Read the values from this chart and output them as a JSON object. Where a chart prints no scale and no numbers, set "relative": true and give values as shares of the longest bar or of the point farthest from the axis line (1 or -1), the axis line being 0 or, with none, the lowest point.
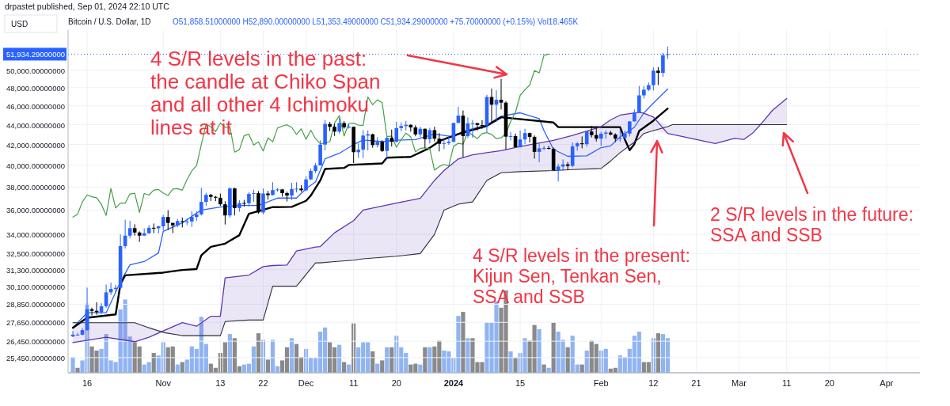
{
  "chart_data": [
    {
      "type": "candlestick",
      "title": "Bitcoin / U.S. Dollar, 1D",
      "subtitle": "O51,858.51000000 H52,890.00000000 L51,353.49000000 C51,934.29000000 +75.70000000 (+0.15%) Vol18.465K",
      "annotations": [
        "4 S/R levels in the past:\nthe candle at Chiko Span\nand all other 4 Ichimoku\nlines at it",
        "4 S/R levels in the present:\nKijun Sen, Tenkan Sen,\nSSA and SSB",
        "2 S/R levels in the future:\nSSA and SSB",
        "USD",
        "drpastet published, Sep 01, 2024 22:10 UTC"
      ],
      "log": "y",
      "grid": true,
      "xlim": [
        "2023-10-12",
        "2024-04-08"
      ],
      "xticks": [
        {
          "value": "2023-10-16",
          "label": "16"
        },
        {
          "value": "2023-11-01",
          "label": "Nov"
        },
        {
          "value": "2023-11-13",
          "label": "13"
        },
        {
          "value": "2023-11-22",
          "label": "22"
        },
        {
          "value": "2023-12-01",
          "label": "Dec"
        },
        {
          "value": "2023-12-11",
          "label": "11"
        },
        {
          "value": "2023-12-20",
          "label": "20"
        },
        {
          "value": "2024-01-01",
          "label": "2024"
        },
        {
          "value": "2024-01-15",
          "label": "15"
        },
        {
          "value": "2024-02-01",
          "label": "Feb"
        },
        {
          "value": "2024-02-12",
          "label": "12"
        },
        {
          "value": "2024-02-21",
          "label": "21"
        },
        {
          "value": "2024-03-01",
          "label": "Mar"
        },
        {
          "value": "2024-03-11",
          "label": "11"
        },
        {
          "value": "2024-03-20",
          "label": "20"
        },
        {
          "value": "2024-04-01",
          "label": "Apr"
        }
      ],
      "ylim": [
        24560,
        54960
      ],
      "yticks": [
        {
          "value": 25450,
          "label": "25,450.00000000"
        },
        {
          "value": 26450,
          "label": "26,450.00000000"
        },
        {
          "value": 27650,
          "label": "27,650.00000000"
        },
        {
          "value": 28850,
          "label": "28,850.00000000"
        },
        {
          "value": 30100,
          "label": "30,100.00000000"
        },
        {
          "value": 31300,
          "label": "31,300.00000000"
        },
        {
          "value": 32500,
          "label": "32,500.00000000"
        },
        {
          "value": 34000,
          "label": "34,000.00000000"
        },
        {
          "value": 36000,
          "label": "36,000.00000000"
        },
        {
          "value": 38000,
          "label": "38,000.00000000"
        },
        {
          "value": 40000,
          "label": "40,000.00000000"
        },
        {
          "value": 42000,
          "label": "42,000.00000000"
        },
        {
          "value": 44000,
          "label": "44,000.00000000"
        },
        {
          "value": 46000,
          "label": "46,000.00000000"
        },
        {
          "value": 48000,
          "label": "48,000.00000000"
        },
        {
          "value": 50000,
          "label": "50,000.00000000"
        }
      ],
      "ref_lines": [
        {
          "axis": "y",
          "value": 51934.29,
          "label": "51,934.29000000",
          "color": "#2962ff",
          "line_style": "dotted"
        }
      ],
      "x": [
        "2023-10-13",
        "2023-10-14",
        "2023-10-15",
        "2023-10-16",
        "2023-10-17",
        "2023-10-18",
        "2023-10-19",
        "2023-10-20",
        "2023-10-21",
        "2023-10-22",
        "2023-10-23",
        "2023-10-24",
        "2023-10-25",
        "2023-10-26",
        "2023-10-27",
        "2023-10-28",
        "2023-10-29",
        "2023-10-30",
        "2023-10-31",
        "2023-11-01",
        "2023-11-02",
        "2023-11-03",
        "2023-11-04",
        "2023-11-05",
        "2023-11-06",
        "2023-11-07",
        "2023-11-08",
        "2023-11-09",
        "2023-11-10",
        "2023-11-11",
        "2023-11-12",
        "2023-11-13",
        "2023-11-14",
        "2023-11-15",
        "2023-11-16",
        "2023-11-17",
        "2023-11-18",
        "2023-11-19",
        "2023-11-20",
        "2023-11-21",
        "2023-11-22",
        "2023-11-23",
        "2023-11-24",
        "2023-11-25",
        "2023-11-26",
        "2023-11-27",
        "2023-11-28",
        "2023-11-29",
        "2023-11-30",
        "2023-12-01",
        "2023-12-02",
        "2023-12-03",
        "2023-12-04",
        "2023-12-05",
        "2023-12-06",
        "2023-12-07",
        "2023-12-08",
        "2023-12-09",
        "2023-12-10",
        "2023-12-11",
        "2023-12-12",
        "2023-12-13",
        "2023-12-14",
        "2023-12-15",
        "2023-12-16",
        "2023-12-17",
        "2023-12-18",
        "2023-12-19",
        "2023-12-20",
        "2023-12-21",
        "2023-12-22",
        "2023-12-23",
        "2023-12-24",
        "2023-12-25",
        "2023-12-26",
        "2023-12-27",
        "2023-12-28",
        "2023-12-29",
        "2023-12-30",
        "2023-12-31",
        "2024-01-01",
        "2024-01-02",
        "2024-01-03",
        "2024-01-04",
        "2024-01-05",
        "2024-01-06",
        "2024-01-07",
        "2024-01-08",
        "2024-01-09",
        "2024-01-10",
        "2024-01-11",
        "2024-01-12",
        "2024-01-13",
        "2024-01-14",
        "2024-01-15",
        "2024-01-16",
        "2024-01-17",
        "2024-01-18",
        "2024-01-19",
        "2024-01-20",
        "2024-01-21",
        "2024-01-22",
        "2024-01-23",
        "2024-01-24",
        "2024-01-25",
        "2024-01-26",
        "2024-01-27",
        "2024-01-28",
        "2024-01-29",
        "2024-01-30",
        "2024-01-31",
        "2024-02-01",
        "2024-02-02",
        "2024-02-03",
        "2024-02-04",
        "2024-02-05",
        "2024-02-06",
        "2024-02-07",
        "2024-02-08",
        "2024-02-09",
        "2024-02-10",
        "2024-02-11",
        "2024-02-12",
        "2024-02-13",
        "2024-02-14",
        "2024-02-15"
      ],
      "ohlc": [
        [
          26750,
          27100,
          26700,
          26860
        ],
        [
          26860,
          26980,
          26820,
          26860
        ],
        [
          26860,
          27280,
          26810,
          27150
        ],
        [
          27150,
          30000,
          27110,
          28510
        ],
        [
          28510,
          28620,
          28100,
          28410
        ],
        [
          28410,
          28990,
          28150,
          28320
        ],
        [
          28320,
          28920,
          28180,
          28720
        ],
        [
          28720,
          30220,
          28600,
          29670
        ],
        [
          29670,
          30350,
          29480,
          29910
        ],
        [
          29910,
          30200,
          29680,
          29990
        ],
        [
          29990,
          34000,
          29900,
          33080
        ],
        [
          33080,
          35200,
          32880,
          33900
        ],
        [
          33900,
          35100,
          33700,
          34500
        ],
        [
          34500,
          34820,
          33900,
          34150
        ],
        [
          34150,
          34240,
          33400,
          33900
        ],
        [
          33900,
          34480,
          33880,
          34090
        ],
        [
          34090,
          34750,
          34050,
          34530
        ],
        [
          34530,
          34880,
          34100,
          34490
        ],
        [
          34490,
          34700,
          34080,
          34650
        ],
        [
          34650,
          35600,
          34330,
          35420
        ],
        [
          35420,
          35980,
          34350,
          34930
        ],
        [
          34930,
          34940,
          34100,
          34730
        ],
        [
          34730,
          35260,
          34580,
          35080
        ],
        [
          35080,
          35380,
          34560,
          35040
        ],
        [
          35040,
          35280,
          34750,
          35050
        ],
        [
          35050,
          35900,
          34600,
          35420
        ],
        [
          35420,
          35900,
          35100,
          35640
        ],
        [
          35640,
          37930,
          35540,
          36700
        ],
        [
          36700,
          37500,
          36350,
          37310
        ],
        [
          37310,
          37400,
          36780,
          37140
        ],
        [
          37140,
          37220,
          36760,
          37060
        ],
        [
          37060,
          37420,
          36350,
          36490
        ],
        [
          36490,
          36750,
          34800,
          35550
        ],
        [
          35550,
          37980,
          35370,
          37880
        ],
        [
          37880,
          37930,
          35550,
          36170
        ],
        [
          36170,
          36840,
          35860,
          36600
        ],
        [
          36600,
          36870,
          36300,
          36590
        ],
        [
          36590,
          37540,
          36300,
          37390
        ],
        [
          37390,
          37760,
          36700,
          37460
        ],
        [
          37460,
          37650,
          35700,
          35800
        ],
        [
          35800,
          37880,
          35640,
          37430
        ],
        [
          37430,
          37660,
          36900,
          37290
        ],
        [
          37290,
          38430,
          37260,
          37730
        ],
        [
          37730,
          37900,
          37600,
          37790
        ],
        [
          37790,
          37830,
          37150,
          37460
        ],
        [
          37460,
          37600,
          36730,
          37250
        ],
        [
          37250,
          38380,
          36870,
          37830
        ],
        [
          37830,
          38430,
          37520,
          37860
        ],
        [
          37860,
          38180,
          37580,
          37720
        ],
        [
          37720,
          38980,
          37620,
          38690
        ],
        [
          38690,
          39700,
          38630,
          39470
        ],
        [
          39470,
          40200,
          39280,
          39980
        ],
        [
          39980,
          42400,
          39980,
          41990
        ],
        [
          41990,
          44500,
          41420,
          44080
        ],
        [
          44080,
          44300,
          43350,
          43780
        ],
        [
          43780,
          44080,
          42850,
          43290
        ],
        [
          43290,
          44700,
          43090,
          44170
        ],
        [
          44170,
          44370,
          43590,
          43730
        ],
        [
          43730,
          44040,
          43590,
          43790
        ],
        [
          43790,
          43790,
          40200,
          41250
        ],
        [
          41250,
          42100,
          40700,
          41490
        ],
        [
          41490,
          43430,
          40680,
          42890
        ],
        [
          42890,
          43420,
          41420,
          43020
        ],
        [
          43020,
          43090,
          41680,
          41940
        ],
        [
          41940,
          42720,
          41700,
          42260
        ],
        [
          42260,
          42430,
          41260,
          41370
        ],
        [
          41370,
          42750,
          40560,
          42660
        ],
        [
          42660,
          43500,
          41800,
          42270
        ],
        [
          42270,
          44300,
          42180,
          43650
        ],
        [
          43650,
          44240,
          43320,
          43860
        ],
        [
          43860,
          44400,
          43420,
          43990
        ],
        [
          43990,
          44020,
          43280,
          43720
        ],
        [
          43720,
          43950,
          42820,
          43010
        ],
        [
          43010,
          43800,
          42740,
          43580
        ],
        [
          43580,
          43600,
          41670,
          42520
        ],
        [
          42520,
          43680,
          42100,
          43440
        ],
        [
          43440,
          43800,
          42310,
          42580
        ],
        [
          42580,
          43130,
          41320,
          42070
        ],
        [
          42070,
          42600,
          41540,
          42140
        ],
        [
          42140,
          42880,
          41970,
          42280
        ],
        [
          42280,
          44190,
          42200,
          44180
        ],
        [
          44180,
          45900,
          44180,
          44950
        ],
        [
          44950,
          45500,
          40750,
          42840
        ],
        [
          42840,
          44760,
          42640,
          44150
        ],
        [
          44150,
          44490,
          42660,
          44160
        ],
        [
          44160,
          44200,
          43400,
          43960
        ],
        [
          43960,
          44480,
          43580,
          43930
        ],
        [
          43930,
          47200,
          43200,
          46960
        ],
        [
          46960,
          47900,
          44300,
          46120
        ],
        [
          46120,
          47700,
          44300,
          46650
        ],
        [
          46650,
          49000,
          45600,
          46340
        ],
        [
          46340,
          46500,
          41500,
          42780
        ],
        [
          42780,
          43250,
          42400,
          42840
        ],
        [
          42840,
          43080,
          41720,
          41730
        ],
        [
          41730,
          43400,
          41720,
          42500
        ],
        [
          42500,
          43580,
          42040,
          43140
        ],
        [
          43140,
          43190,
          42200,
          42760
        ],
        [
          42760,
          42900,
          40630,
          41280
        ],
        [
          41280,
          42200,
          40280,
          41620
        ],
        [
          41620,
          41870,
          41440,
          41660
        ],
        [
          41660,
          41880,
          41500,
          41580
        ],
        [
          41580,
          41690,
          39450,
          39540
        ],
        [
          39540,
          40130,
          38500,
          39880
        ],
        [
          39880,
          40560,
          39500,
          40080
        ],
        [
          40080,
          40300,
          39560,
          39940
        ],
        [
          39940,
          42200,
          39830,
          41820
        ],
        [
          41820,
          42230,
          41400,
          42120
        ],
        [
          42120,
          42800,
          41620,
          42030
        ],
        [
          42030,
          43300,
          41800,
          43300
        ],
        [
          43300,
          43880,
          42700,
          42940
        ],
        [
          42940,
          43740,
          42300,
          42580
        ],
        [
          42580,
          43280,
          41880,
          43080
        ],
        [
          43080,
          43420,
          42580,
          43190
        ],
        [
          43190,
          43380,
          42900,
          43000
        ],
        [
          43000,
          43120,
          42250,
          42580
        ],
        [
          42580,
          43500,
          42260,
          42660
        ],
        [
          42660,
          43400,
          42580,
          43090
        ],
        [
          43090,
          44370,
          42800,
          44340
        ],
        [
          44340,
          45600,
          44330,
          45290
        ],
        [
          45290,
          48200,
          45240,
          47140
        ],
        [
          47140,
          48170,
          46800,
          47770
        ],
        [
          47770,
          48580,
          47620,
          48290
        ],
        [
          48290,
          50330,
          47700,
          49960
        ],
        [
          49960,
          50380,
          48300,
          49700
        ],
        [
          49700,
          52100,
          49250,
          51800
        ],
        [
          51858.51,
          52890,
          51353.49,
          51934.29
        ]
      ],
      "series": [
        {
          "type": "line",
          "color": "#2962ff",
          "x": [
            "2023-10-13",
            "2023-10-16",
            "2023-10-20",
            "2023-10-23",
            "2023-10-25",
            "2023-10-28",
            "2023-10-31",
            "2023-11-01",
            "2023-11-05",
            "2023-11-09",
            "2023-11-13",
            "2023-11-17",
            "2023-11-21",
            "2023-11-25",
            "2023-11-29",
            "2023-12-01",
            "2023-12-03",
            "2023-12-05",
            "2023-12-08",
            "2023-12-11",
            "2023-12-13",
            "2023-12-17",
            "2023-12-20",
            "2023-12-24",
            "2023-12-28",
            "2024-01-01",
            "2024-01-03",
            "2024-01-08",
            "2024-01-11",
            "2024-01-15",
            "2024-01-19",
            "2024-01-20",
            "2024-01-22",
            "2024-01-25",
            "2024-01-29",
            "2024-02-01",
            "2024-02-03",
            "2024-02-05",
            "2024-02-08",
            "2024-02-10",
            "2024-02-12",
            "2024-02-15"
          ],
          "values": [
            27300,
            28280,
            28280,
            30400,
            31650,
            31900,
            32550,
            34240,
            34930,
            36010,
            36250,
            36390,
            36390,
            37030,
            37030,
            37850,
            38470,
            40610,
            41140,
            41990,
            42450,
            42280,
            42430,
            42480,
            43040,
            42760,
            43330,
            43980,
            44880,
            45250,
            44640,
            43390,
            41520,
            40850,
            40900,
            41690,
            41860,
            42750,
            43740,
            45230,
            46290,
            47850
          ]
        },
        {
          "type": "line",
          "color": "#000000",
          "x": [
            "2023-10-13",
            "2023-10-16",
            "2023-10-22",
            "2023-10-23",
            "2023-10-24",
            "2023-11-01",
            "2023-11-05",
            "2023-11-08",
            "2023-11-09",
            "2023-11-11",
            "2023-11-14",
            "2023-11-17",
            "2023-11-19",
            "2023-11-24",
            "2023-11-28",
            "2023-12-01",
            "2023-12-02",
            "2023-12-04",
            "2023-12-05",
            "2023-12-09",
            "2023-12-10",
            "2023-12-17",
            "2023-12-18",
            "2023-12-23",
            "2023-12-27",
            "2023-12-28",
            "2023-12-29",
            "2024-01-02",
            "2024-01-08",
            "2024-01-11",
            "2024-01-22",
            "2024-01-23",
            "2024-02-05",
            "2024-02-06",
            "2024-02-07",
            "2024-02-08",
            "2024-02-09",
            "2024-02-12",
            "2024-02-15"
          ],
          "values": [
            27300,
            27950,
            28170,
            30250,
            30880,
            31080,
            31270,
            31340,
            32370,
            33020,
            33270,
            33940,
            35690,
            36250,
            36270,
            36790,
            37250,
            38600,
            39650,
            39750,
            40030,
            40170,
            40720,
            40790,
            41670,
            41990,
            42340,
            43050,
            43880,
            44780,
            44230,
            43750,
            43750,
            42500,
            41440,
            42050,
            43350,
            44420,
            45700
          ]
        },
        {
          "type": "line",
          "color": "#43a047",
          "x": [
            "2023-10-13",
            "2023-10-14",
            "2023-10-15",
            "2023-10-16",
            "2023-10-17",
            "2023-10-18",
            "2023-10-19",
            "2023-10-20",
            "2023-10-21",
            "2023-10-22",
            "2023-10-23",
            "2023-10-24",
            "2023-10-25",
            "2023-10-26",
            "2023-10-27",
            "2023-10-28",
            "2023-10-29",
            "2023-10-30",
            "2023-10-31",
            "2023-11-01",
            "2023-11-02",
            "2023-11-03",
            "2023-11-04",
            "2023-11-05",
            "2023-11-06",
            "2023-11-07",
            "2023-11-08",
            "2023-11-09",
            "2023-11-10",
            "2023-11-11",
            "2023-11-12",
            "2023-11-13",
            "2023-11-14",
            "2023-11-15",
            "2023-11-16",
            "2023-11-17",
            "2023-11-18",
            "2023-11-19",
            "2023-11-20",
            "2023-11-21",
            "2023-11-22",
            "2023-11-23",
            "2023-11-24",
            "2023-11-25",
            "2023-11-26",
            "2023-11-27",
            "2023-11-28",
            "2023-11-29",
            "2023-11-30",
            "2023-12-01",
            "2023-12-02",
            "2023-12-03",
            "2023-12-04",
            "2023-12-05",
            "2023-12-06",
            "2023-12-07",
            "2023-12-08",
            "2023-12-09",
            "2023-12-10",
            "2023-12-11",
            "2023-12-12",
            "2023-12-13",
            "2023-12-14",
            "2023-12-15",
            "2023-12-16",
            "2023-12-17",
            "2023-12-18",
            "2023-12-19",
            "2023-12-20",
            "2023-12-21",
            "2023-12-22",
            "2023-12-23",
            "2023-12-24",
            "2023-12-25",
            "2023-12-26",
            "2023-12-27",
            "2023-12-28",
            "2023-12-29",
            "2023-12-30",
            "2023-12-31",
            "2024-01-01",
            "2024-01-02",
            "2024-01-03",
            "2024-01-04",
            "2024-01-05",
            "2024-01-06",
            "2024-01-07",
            "2024-01-08",
            "2024-01-09",
            "2024-01-10",
            "2024-01-11",
            "2024-01-12",
            "2024-01-13",
            "2024-01-14",
            "2024-01-15",
            "2024-01-16",
            "2024-01-17",
            "2024-01-18",
            "2024-01-19",
            "2024-01-20",
            "2024-01-21"
          ],
          "values": [
            35420,
            35640,
            36700,
            37310,
            37140,
            37060,
            36490,
            35550,
            37880,
            36170,
            36600,
            36590,
            37390,
            37460,
            35800,
            37430,
            37290,
            37730,
            37790,
            37460,
            37250,
            37830,
            37860,
            37720,
            38690,
            39470,
            39980,
            41990,
            44080,
            43780,
            43290,
            44170,
            43730,
            43790,
            41250,
            41490,
            42890,
            43020,
            41940,
            42260,
            41370,
            42660,
            42270,
            43650,
            43860,
            43990,
            43720,
            43010,
            43580,
            42520,
            43440,
            42580,
            42070,
            42140,
            42280,
            44180,
            44950,
            42840,
            44150,
            44160,
            43960,
            43930,
            46960,
            46120,
            46650,
            46340,
            42780,
            42840,
            41730,
            42500,
            43140,
            42760,
            41280,
            41620,
            41660,
            41580,
            39540,
            39880,
            40080,
            39940,
            41820,
            42120,
            42030,
            43300,
            42940,
            42580,
            43080,
            43190,
            43000,
            42580,
            42660,
            43090,
            44340,
            45290,
            47140,
            47770,
            48290,
            49960,
            49700,
            51800,
            51934.29
          ]
        },
        {
          "type": "line",
          "color": "#5e35b1",
          "x": [
            "2023-10-13",
            "2023-10-20",
            "2023-10-26",
            "2023-10-29",
            "2023-11-01",
            "2023-11-05",
            "2023-11-08",
            "2023-11-11",
            "2023-11-13",
            "2023-11-14",
            "2023-11-19",
            "2023-11-22",
            "2023-11-24",
            "2023-11-27",
            "2023-11-29",
            "2023-12-03",
            "2023-12-04",
            "2023-12-07",
            "2023-12-11",
            "2023-12-13",
            "2023-12-20",
            "2023-12-25",
            "2023-12-28",
            "2023-12-30",
            "2024-01-02",
            "2024-01-05",
            "2024-01-08",
            "2024-01-11",
            "2024-01-15",
            "2024-01-22",
            "2024-01-26",
            "2024-02-01",
            "2024-02-03",
            "2024-02-05",
            "2024-02-09",
            "2024-02-10",
            "2024-02-12",
            "2024-02-15",
            "2024-02-16",
            "2024-02-18",
            "2024-02-25",
            "2024-02-29",
            "2024-03-02",
            "2024-03-04",
            "2024-03-06",
            "2024-03-08",
            "2024-03-11"
          ],
          "values": [
            26370,
            26700,
            26420,
            26700,
            27100,
            27630,
            27400,
            28050,
            28050,
            30700,
            30900,
            31520,
            31600,
            31640,
            32700,
            33000,
            33040,
            34130,
            35120,
            36000,
            36600,
            37000,
            38600,
            39500,
            40600,
            41000,
            41200,
            41400,
            41800,
            42400,
            42900,
            43800,
            44500,
            45000,
            45300,
            45200,
            44800,
            43100,
            43000,
            42800,
            42100,
            42600,
            42500,
            43200,
            44300,
            45500,
            46800
          ],
          "upper": [
            27630,
            27630,
            27630,
            27300,
            27100,
            27630,
            27400,
            28050,
            28050,
            30700,
            30900,
            31520,
            31600,
            31640,
            32700,
            33000,
            33040,
            34130,
            35120,
            36000,
            36600,
            37000,
            38600,
            39500,
            40600,
            41000,
            41200,
            41400,
            41800,
            42400,
            42900,
            43800,
            44500,
            45000,
            45300,
            45200,
            44800,
            43800,
            44000,
            44000,
            44000,
            44000,
            44000,
            44000,
            44300,
            45500,
            46800
          ],
          "lower": [
            26370,
            26700,
            26420,
            26700,
            27000,
            26800,
            26800,
            26800,
            26800,
            27700,
            27800,
            27800,
            30100,
            30100,
            30100,
            31800,
            31800,
            31900,
            32000,
            32100,
            32300,
            32500,
            34000,
            36000,
            36500,
            36700,
            38600,
            39300,
            39400,
            39500,
            39600,
            39700,
            40400,
            41200,
            42600,
            43100,
            43400,
            43100,
            43000,
            42800,
            42100,
            42600,
            42500,
            43200,
            44000,
            44000,
            44000
          ]
        },
        {
          "type": "line",
          "color": "#2a2e39",
          "x": [
            "2023-10-13",
            "2023-10-20",
            "2023-10-26",
            "2023-10-29",
            "2023-11-01",
            "2023-11-05",
            "2023-11-08",
            "2023-11-11",
            "2023-11-13",
            "2023-11-14",
            "2023-11-19",
            "2023-11-22",
            "2023-11-24",
            "2023-11-27",
            "2023-11-29",
            "2023-12-03",
            "2023-12-04",
            "2023-12-07",
            "2023-12-11",
            "2023-12-13",
            "2023-12-20",
            "2023-12-25",
            "2023-12-28",
            "2023-12-30",
            "2024-01-02",
            "2024-01-05",
            "2024-01-08",
            "2024-01-11",
            "2024-01-15",
            "2024-01-22",
            "2024-01-26",
            "2024-02-01",
            "2024-02-03",
            "2024-02-05",
            "2024-02-09",
            "2024-02-10",
            "2024-02-12",
            "2024-02-15",
            "2024-02-16",
            "2024-02-18",
            "2024-02-25",
            "2024-02-29",
            "2024-03-02",
            "2024-03-04",
            "2024-03-06",
            "2024-03-08",
            "2024-03-11"
          ],
          "values": [
            27630,
            27630,
            27630,
            27300,
            27000,
            26800,
            26800,
            26800,
            26800,
            27700,
            27800,
            27800,
            30100,
            30100,
            30100,
            31800,
            31800,
            31900,
            32000,
            32100,
            32300,
            32500,
            34000,
            36000,
            36500,
            36700,
            38600,
            39300,
            39400,
            39500,
            39600,
            39700,
            40400,
            41200,
            42600,
            43100,
            43400,
            43800,
            44000,
            44000,
            44000,
            44000,
            44000,
            44000,
            44000,
            44000,
            44000
          ]
        }
      ]
    },
    {
      "type": "bar",
      "relative": true,
      "tick_labels": false,
      "xlim": [
        "2023-10-12",
        "2024-04-08"
      ],
      "x": [
        "2023-10-13",
        "2023-10-14",
        "2023-10-15",
        "2023-10-16",
        "2023-10-17",
        "2023-10-18",
        "2023-10-19",
        "2023-10-20",
        "2023-10-21",
        "2023-10-22",
        "2023-10-23",
        "2023-10-24",
        "2023-10-25",
        "2023-10-26",
        "2023-10-27",
        "2023-10-28",
        "2023-10-29",
        "2023-10-30",
        "2023-10-31",
        "2023-11-01",
        "2023-11-02",
        "2023-11-03",
        "2023-11-04",
        "2023-11-05",
        "2023-11-06",
        "2023-11-07",
        "2023-11-08",
        "2023-11-09",
        "2023-11-10",
        "2023-11-11",
        "2023-11-12",
        "2023-11-13",
        "2023-11-14",
        "2023-11-15",
        "2023-11-16",
        "2023-11-17",
        "2023-11-18",
        "2023-11-19",
        "2023-11-20",
        "2023-11-21",
        "2023-11-22",
        "2023-11-23",
        "2023-11-24",
        "2023-11-25",
        "2023-11-26",
        "2023-11-27",
        "2023-11-28",
        "2023-11-29",
        "2023-11-30",
        "2023-12-01",
        "2023-12-02",
        "2023-12-03",
        "2023-12-04",
        "2023-12-05",
        "2023-12-06",
        "2023-12-07",
        "2023-12-08",
        "2023-12-09",
        "2023-12-10",
        "2023-12-11",
        "2023-12-12",
        "2023-12-13",
        "2023-12-14",
        "2023-12-15",
        "2023-12-16",
        "2023-12-17",
        "2023-12-18",
        "2023-12-19",
        "2023-12-20",
        "2023-12-21",
        "2023-12-22",
        "2023-12-23",
        "2023-12-24",
        "2023-12-25",
        "2023-12-26",
        "2023-12-27",
        "2023-12-28",
        "2023-12-29",
        "2023-12-30",
        "2023-12-31",
        "2024-01-01",
        "2024-01-02",
        "2024-01-03",
        "2024-01-04",
        "2024-01-05",
        "2024-01-06",
        "2024-01-07",
        "2024-01-08",
        "2024-01-09",
        "2024-01-10",
        "2024-01-11",
        "2024-01-12",
        "2024-01-13",
        "2024-01-14",
        "2024-01-15",
        "2024-01-16",
        "2024-01-17",
        "2024-01-18",
        "2024-01-19",
        "2024-01-20",
        "2024-01-21",
        "2024-01-22",
        "2024-01-23",
        "2024-01-24",
        "2024-01-25",
        "2024-01-26",
        "2024-01-27",
        "2024-01-28",
        "2024-01-29",
        "2024-01-30",
        "2024-01-31",
        "2024-02-01",
        "2024-02-02",
        "2024-02-03",
        "2024-02-04",
        "2024-02-05",
        "2024-02-06",
        "2024-02-07",
        "2024-02-08",
        "2024-02-09",
        "2024-02-10",
        "2024-02-11",
        "2024-02-12",
        "2024-02-13",
        "2024-02-14",
        "2024-02-15"
      ],
      "values": [
        0.19,
        0.06,
        0.15,
        0.84,
        0.32,
        0.27,
        0.29,
        0.47,
        0.15,
        0.13,
        0.77,
        0.89,
        0.44,
        0.37,
        0.32,
        0.1,
        0.13,
        0.24,
        0.21,
        0.37,
        0.31,
        0.32,
        0.1,
        0.13,
        0.16,
        0.32,
        0.29,
        0.68,
        0.35,
        0.11,
        0.06,
        0.24,
        0.37,
        0.47,
        0.42,
        0.08,
        0.1,
        0.11,
        0.32,
        0.48,
        0.4,
        0.16,
        0.4,
        0.08,
        0.15,
        0.31,
        0.42,
        0.35,
        0.19,
        0.29,
        0.18,
        0.18,
        0.5,
        0.55,
        0.37,
        0.31,
        0.34,
        0.13,
        0.1,
        0.6,
        0.31,
        0.37,
        0.37,
        0.26,
        0.11,
        0.15,
        0.31,
        0.31,
        0.45,
        0.31,
        0.24,
        0.1,
        0.11,
        0.1,
        0.31,
        0.31,
        0.32,
        0.39,
        0.27,
        0.26,
        0.18,
        0.69,
        0.74,
        0.42,
        0.42,
        0.13,
        0.13,
        0.61,
        0.61,
        0.87,
        0.79,
        1,
        0.26,
        0.18,
        0.24,
        0.42,
        0.39,
        0.58,
        0.53,
        0.1,
        0.06,
        0.61,
        0.5,
        0.4,
        0.31,
        0.45,
        0.1,
        0.1,
        0.27,
        0.39,
        0.35,
        0.27,
        0.29,
        0.05,
        0.06,
        0.21,
        0.19,
        0.29,
        0.45,
        0.5,
        0.13,
        0.13,
        0.42,
        0.48,
        0.47,
        0.42
      ],
      "colors": [
        "#90b4f2",
        "#8a8a8a",
        "#90b4f2",
        "#90b4f2",
        "#8a8a8a",
        "#8a8a8a",
        "#90b4f2",
        "#90b4f2",
        "#90b4f2",
        "#90b4f2",
        "#90b4f2",
        "#90b4f2",
        "#90b4f2",
        "#8a8a8a",
        "#8a8a8a",
        "#90b4f2",
        "#90b4f2",
        "#8a8a8a",
        "#90b4f2",
        "#90b4f2",
        "#8a8a8a",
        "#8a8a8a",
        "#90b4f2",
        "#8a8a8a",
        "#90b4f2",
        "#90b4f2",
        "#90b4f2",
        "#90b4f2",
        "#90b4f2",
        "#8a8a8a",
        "#8a8a8a",
        "#8a8a8a",
        "#8a8a8a",
        "#90b4f2",
        "#8a8a8a",
        "#8a8a8a",
        "#90b4f2",
        "#90b4f2",
        "#90b4f2",
        "#8a8a8a",
        "#90b4f2",
        "#8a8a8a",
        "#90b4f2",
        "#90b4f2",
        "#8a8a8a",
        "#8a8a8a",
        "#90b4f2",
        "#8a8a8a",
        "#8a8a8a",
        "#90b4f2",
        "#90b4f2",
        "#90b4f2",
        "#90b4f2",
        "#90b4f2",
        "#8a8a8a",
        "#8a8a8a",
        "#90b4f2",
        "#8a8a8a",
        "#90b4f2",
        "#8a8a8a",
        "#90b4f2",
        "#90b4f2",
        "#90b4f2",
        "#8a8a8a",
        "#90b4f2",
        "#8a8a8a",
        "#90b4f2",
        "#8a8a8a",
        "#90b4f2",
        "#90b4f2",
        "#90b4f2",
        "#8a8a8a",
        "#8a8a8a",
        "#90b4f2",
        "#8a8a8a",
        "#90b4f2",
        "#8a8a8a",
        "#8a8a8a",
        "#90b4f2",
        "#90b4f2",
        "#90b4f2",
        "#90b4f2",
        "#8a8a8a",
        "#90b4f2",
        "#8a8a8a",
        "#8a8a8a",
        "#8a8a8a",
        "#90b4f2",
        "#90b4f2",
        "#90b4f2",
        "#8a8a8a",
        "#8a8a8a",
        "#90b4f2",
        "#8a8a8a",
        "#90b4f2",
        "#90b4f2",
        "#8a8a8a",
        "#8a8a8a",
        "#90b4f2",
        "#8a8a8a",
        "#90b4f2",
        "#8a8a8a",
        "#90b4f2",
        "#90b4f2",
        "#8a8a8a",
        "#90b4f2",
        "#90b4f2",
        "#8a8a8a",
        "#90b4f2",
        "#8a8a8a",
        "#8a8a8a",
        "#90b4f2",
        "#90b4f2",
        "#8a8a8a",
        "#8a8a8a",
        "#90b4f2",
        "#90b4f2",
        "#90b4f2",
        "#90b4f2",
        "#90b4f2",
        "#8a8a8a",
        "#8a8a8a",
        "#90b4f2",
        "#8a8a8a",
        "#90b4f2",
        "#90b4f2"
      ]
    }
  ]
}
